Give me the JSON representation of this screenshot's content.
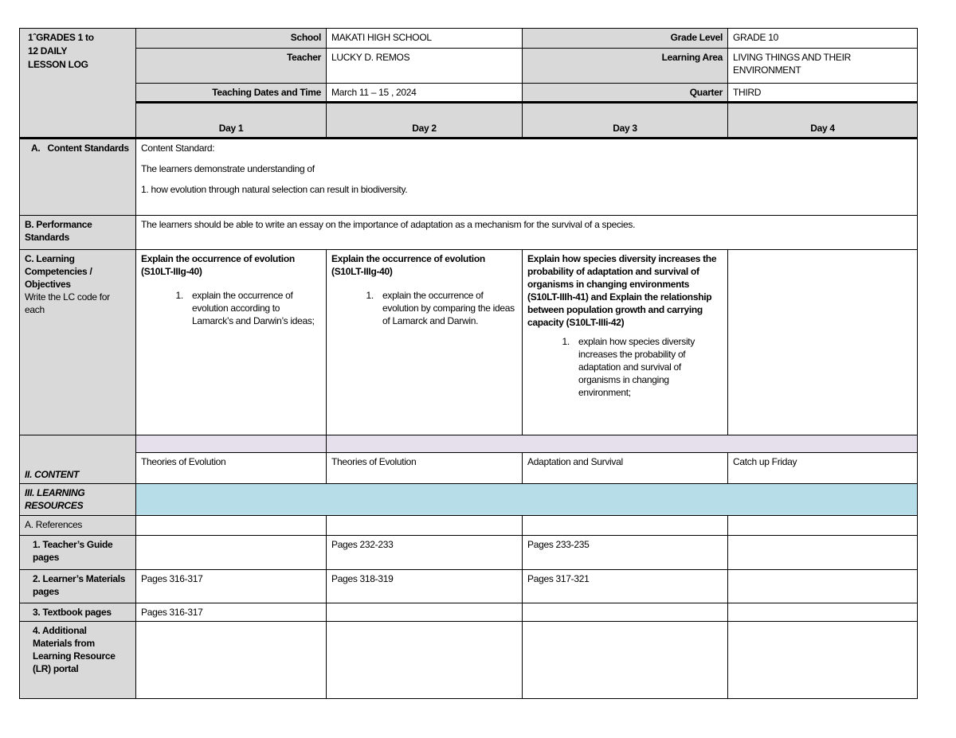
{
  "title": "1ˆGRADES 1 to\n12  DAILY\nLESSON LOG",
  "header": {
    "school_label": "School",
    "school": "MAKATI HIGH SCHOOL",
    "grade_label": "Grade Level",
    "grade": " GRADE 10",
    "teacher_label": "Teacher",
    "teacher": "LUCKY D. REMOS",
    "area_label": "Learning Area",
    "area": "LIVING THINGS AND THEIR ENVIRONMENT",
    "dates_label": "Teaching Dates and Time",
    "dates": "March 11 – 15 , 2024",
    "quarter_label": "Quarter",
    "quarter": "THIRD"
  },
  "days": [
    "Day 1",
    "Day 2",
    "Day 3",
    "Day 4"
  ],
  "content_standards": {
    "label_a": "A.",
    "label": "Content Standards",
    "line1": "Content Standard:",
    "line2": "The learners demonstrate understanding of",
    "line3": "1. how evolution through natural selection can result in biodiversity."
  },
  "performance_standards": {
    "label": "B. Performance Standards",
    "text": "The learners should be able to write an essay on the importance of adaptation as a mechanism for the survival of a species."
  },
  "competencies": {
    "label": "C. Learning Competencies / Objectives",
    "sub": "Write the LC code for each",
    "day1_head": "Explain the occurrence of evolution (S10LT-IIIg-40)",
    "day1_item": "explain the occurrence of evolution according to Lamarck’s and Darwin’s ideas;",
    "day2_head": "Explain the occurrence of evolution (S10LT-IIIg-40)",
    "day2_item": "explain the occurrence of evolution by comparing the ideas of Lamarck and Darwin.",
    "day3_head": "Explain how species diversity increases the probability of adaptation and survival of organisms in changing environments (S10LT-IIIh-41) and Explain the relationship between population growth and carrying capacity (S10LT-IIIi-42)",
    "day3_item": "explain how species diversity increases the probability of adaptation and survival of organisms in changing environment;"
  },
  "content": {
    "label": "II. CONTENT",
    "days": [
      "Theories of Evolution",
      "Theories of Evolution",
      "Adaptation and Survival",
      "Catch up Friday"
    ]
  },
  "resources": {
    "label": "III. LEARNING RESOURCES",
    "references": "A. References",
    "tg_label": "1. Teacher’s Guide pages",
    "tg": [
      "",
      "Pages 232-233",
      "Pages 233-235",
      ""
    ],
    "lm_label": "2. Learner’s Materials pages",
    "lm": [
      "Pages 316-317",
      "Pages 318-319",
      "Pages 317-321",
      ""
    ],
    "tb_label": "3. Textbook pages",
    "tb": [
      "Pages 316-317",
      "",
      "",
      ""
    ],
    "add_label": "4. Additional Materials from Learning Resource (LR) portal"
  }
}
